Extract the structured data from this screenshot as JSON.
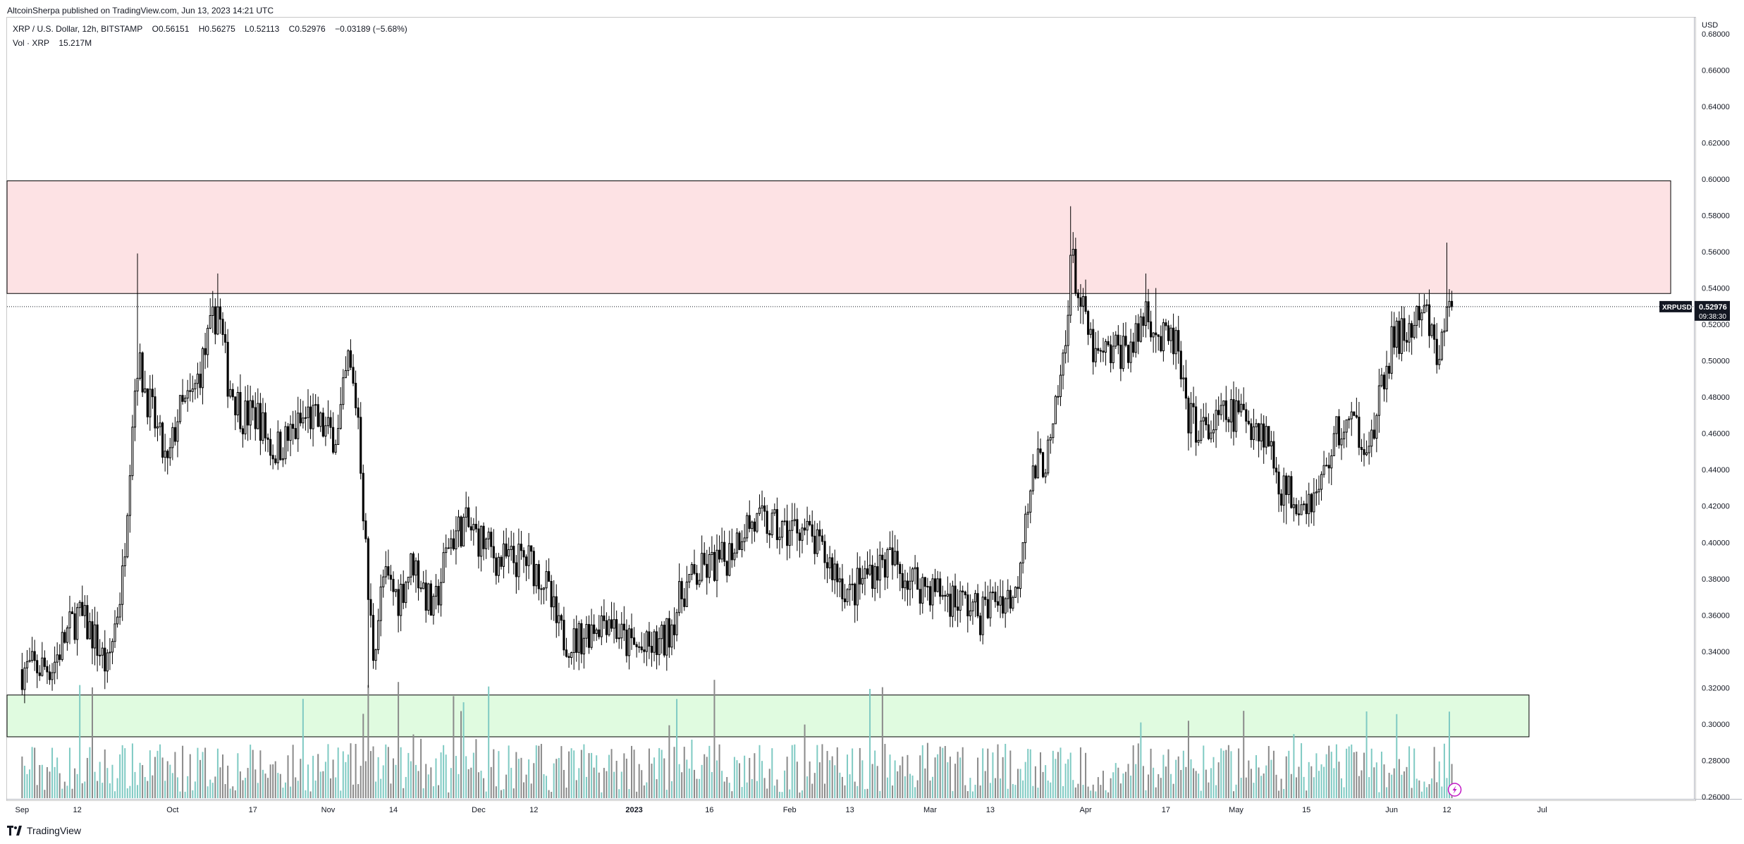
{
  "header": {
    "published": "AltcoinSherpa published on TradingView.com, Jun 13, 2023 14:21 UTC"
  },
  "legend": {
    "symbol_line": "XRP / U.S. Dollar, 12h, BITSTAMP",
    "o_label": "O",
    "o_value": "0.56151",
    "h_label": "H",
    "h_value": "0.56275",
    "l_label": "L",
    "l_value": "0.52113",
    "c_label": "C",
    "c_value": "0.52976",
    "change": "−0.03189 (−5.68%)",
    "vol_label": "Vol · XRP",
    "vol_value": "15.217M"
  },
  "axis": {
    "currency": "USD"
  },
  "price_tag": {
    "symbol": "XRPUSD",
    "value": "0.52976",
    "countdown": "09:38:30"
  },
  "footer": {
    "brand": "TradingView"
  },
  "colors": {
    "resistance_zone": "#fde2e4",
    "support_zone": "#e0fbe0",
    "volume_up": "#7fcac3",
    "volume_down": "#8a8a8a",
    "candle": "#000000"
  },
  "chart_data": {
    "type": "candlestick",
    "symbol": "XRPUSD",
    "exchange": "BITSTAMP",
    "interval": "12h",
    "ylim": [
      0.26,
      0.69
    ],
    "y_ticks": [
      "0.68000",
      "0.66000",
      "0.64000",
      "0.62000",
      "0.60000",
      "0.58000",
      "0.56000",
      "0.54000",
      "0.52000",
      "0.50000",
      "0.48000",
      "0.46000",
      "0.44000",
      "0.42000",
      "0.40000",
      "0.38000",
      "0.36000",
      "0.34000",
      "0.32000",
      "0.30000",
      "0.28000",
      "0.26000"
    ],
    "x_ticks": [
      "Sep",
      "12",
      "Oct",
      "17",
      "Nov",
      "14",
      "Dec",
      "12",
      "2023",
      "16",
      "Feb",
      "13",
      "Mar",
      "13",
      "Apr",
      "17",
      "May",
      "15",
      "Jun",
      "12",
      "Jul"
    ],
    "zones": [
      {
        "name": "resistance",
        "top": 0.599,
        "bottom": 0.537
      },
      {
        "name": "support",
        "top": 0.316,
        "bottom": 0.293
      }
    ],
    "last_price": 0.52976,
    "price_path": [
      [
        "2022-09-01",
        0.33
      ],
      [
        "2022-09-07",
        0.332
      ],
      [
        "2022-09-10",
        0.35
      ],
      [
        "2022-09-12",
        0.36
      ],
      [
        "2022-09-15",
        0.35
      ],
      [
        "2022-09-18",
        0.33
      ],
      [
        "2022-09-21",
        0.38
      ],
      [
        "2022-09-23",
        0.47
      ],
      [
        "2022-09-24",
        0.5
      ],
      [
        "2022-09-27",
        0.47
      ],
      [
        "2022-09-30",
        0.44
      ],
      [
        "2022-10-02",
        0.47
      ],
      [
        "2022-10-05",
        0.48
      ],
      [
        "2022-10-08",
        0.51
      ],
      [
        "2022-10-10",
        0.53
      ],
      [
        "2022-10-12",
        0.49
      ],
      [
        "2022-10-15",
        0.47
      ],
      [
        "2022-10-18",
        0.47
      ],
      [
        "2022-10-21",
        0.45
      ],
      [
        "2022-10-25",
        0.46
      ],
      [
        "2022-10-28",
        0.47
      ],
      [
        "2022-11-01",
        0.46
      ],
      [
        "2022-11-03",
        0.46
      ],
      [
        "2022-11-05",
        0.5
      ],
      [
        "2022-11-07",
        0.47
      ],
      [
        "2022-11-09",
        0.37
      ],
      [
        "2022-11-10",
        0.34
      ],
      [
        "2022-11-12",
        0.38
      ],
      [
        "2022-11-15",
        0.37
      ],
      [
        "2022-11-18",
        0.39
      ],
      [
        "2022-11-22",
        0.36
      ],
      [
        "2022-11-25",
        0.4
      ],
      [
        "2022-11-28",
        0.41
      ],
      [
        "2022-12-02",
        0.4
      ],
      [
        "2022-12-05",
        0.39
      ],
      [
        "2022-12-08",
        0.39
      ],
      [
        "2022-12-11",
        0.39
      ],
      [
        "2022-12-14",
        0.38
      ],
      [
        "2022-12-17",
        0.35
      ],
      [
        "2022-12-20",
        0.345
      ],
      [
        "2022-12-24",
        0.355
      ],
      [
        "2022-12-27",
        0.36
      ],
      [
        "2022-12-30",
        0.345
      ],
      [
        "2023-01-03",
        0.34
      ],
      [
        "2023-01-07",
        0.345
      ],
      [
        "2023-01-11",
        0.375
      ],
      [
        "2023-01-15",
        0.385
      ],
      [
        "2023-01-19",
        0.39
      ],
      [
        "2023-01-23",
        0.41
      ],
      [
        "2023-01-27",
        0.41
      ],
      [
        "2023-01-31",
        0.405
      ],
      [
        "2023-02-03",
        0.41
      ],
      [
        "2023-02-07",
        0.395
      ],
      [
        "2023-02-10",
        0.385
      ],
      [
        "2023-02-13",
        0.37
      ],
      [
        "2023-02-17",
        0.385
      ],
      [
        "2023-02-21",
        0.39
      ],
      [
        "2023-02-25",
        0.38
      ],
      [
        "2023-03-01",
        0.375
      ],
      [
        "2023-03-05",
        0.37
      ],
      [
        "2023-03-09",
        0.365
      ],
      [
        "2023-03-11",
        0.36
      ],
      [
        "2023-03-14",
        0.37
      ],
      [
        "2023-03-18",
        0.37
      ],
      [
        "2023-03-20",
        0.42
      ],
      [
        "2023-03-22",
        0.44
      ],
      [
        "2023-03-25",
        0.45
      ],
      [
        "2023-03-28",
        0.51
      ],
      [
        "2023-03-29",
        0.56
      ],
      [
        "2023-03-31",
        0.53
      ],
      [
        "2023-04-03",
        0.5
      ],
      [
        "2023-04-07",
        0.505
      ],
      [
        "2023-04-11",
        0.51
      ],
      [
        "2023-04-13",
        0.53
      ],
      [
        "2023-04-16",
        0.51
      ],
      [
        "2023-04-19",
        0.51
      ],
      [
        "2023-04-21",
        0.47
      ],
      [
        "2023-04-25",
        0.46
      ],
      [
        "2023-04-29",
        0.47
      ],
      [
        "2023-05-03",
        0.47
      ],
      [
        "2023-05-07",
        0.46
      ],
      [
        "2023-05-10",
        0.43
      ],
      [
        "2023-05-13",
        0.425
      ],
      [
        "2023-05-17",
        0.425
      ],
      [
        "2023-05-21",
        0.46
      ],
      [
        "2023-05-24",
        0.465
      ],
      [
        "2023-05-28",
        0.455
      ],
      [
        "2023-06-01",
        0.51
      ],
      [
        "2023-06-04",
        0.515
      ],
      [
        "2023-06-06",
        0.52
      ],
      [
        "2023-06-08",
        0.525
      ],
      [
        "2023-06-10",
        0.5
      ],
      [
        "2023-06-12",
        0.525
      ],
      [
        "2023-06-13",
        0.52976
      ]
    ]
  }
}
